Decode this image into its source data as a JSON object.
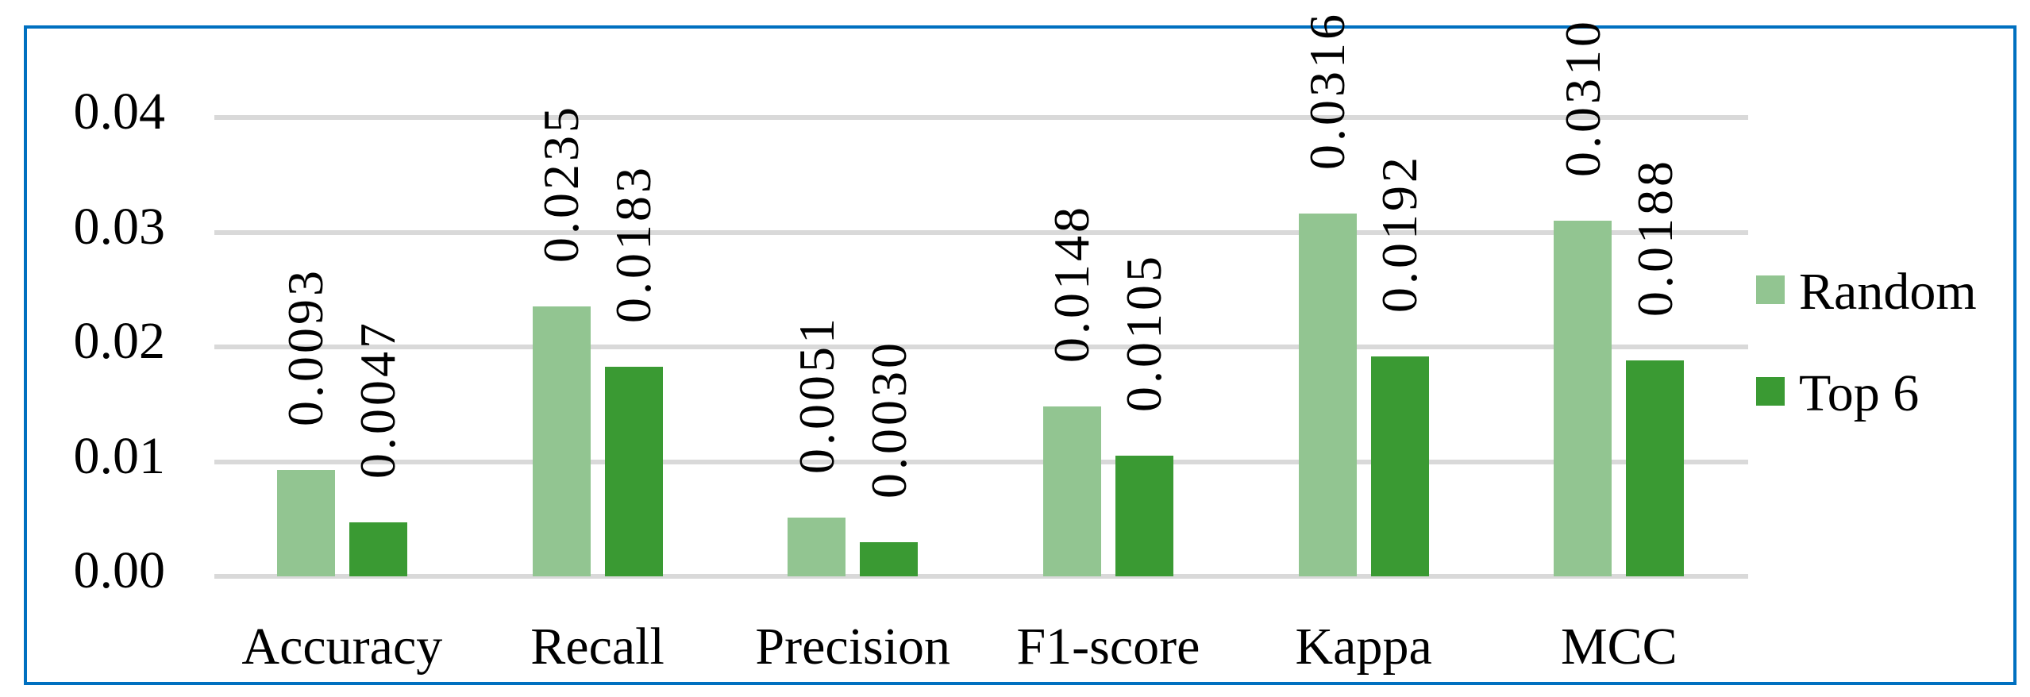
{
  "chart_data": {
    "type": "bar",
    "title": "",
    "xlabel": "",
    "ylabel": "",
    "ylim": [
      0,
      0.04
    ],
    "yticks": [
      "0.00",
      "0.01",
      "0.02",
      "0.03",
      "0.04"
    ],
    "grid": true,
    "legend_position": "right",
    "categories": [
      "Accuracy",
      "Recall",
      "Precision",
      "F1-score",
      "Kappa",
      "MCC"
    ],
    "series": [
      {
        "name": "Random",
        "color": "#92C591",
        "values": [
          0.0093,
          0.0235,
          0.0051,
          0.0148,
          0.0316,
          0.031
        ],
        "labels": [
          "0.0093",
          "0.0235",
          "0.0051",
          "0.0148",
          "0.0316",
          "0.0310"
        ]
      },
      {
        "name": "Top 6",
        "color": "#3A9A33",
        "values": [
          0.0047,
          0.0183,
          0.003,
          0.0105,
          0.0192,
          0.0188
        ],
        "labels": [
          "0.0047",
          "0.0183",
          "0.0030",
          "0.0105",
          "0.0192",
          "0.0188"
        ]
      }
    ]
  },
  "colors": {
    "border": "#0070C0",
    "grid": "#D9D9D9"
  }
}
